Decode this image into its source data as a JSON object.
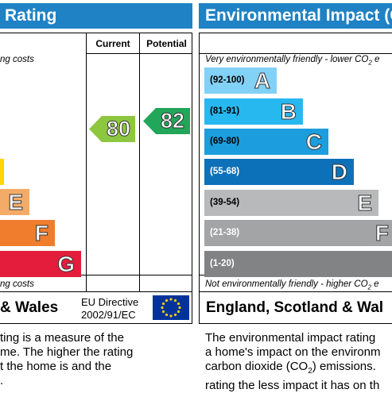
{
  "left": {
    "header_title": "Rating",
    "col_current": "Current",
    "col_potential": "Potential",
    "top_note": "ng costs",
    "bottom_note": "ng costs",
    "bands": [
      {
        "letter": "E",
        "color": "#f4ab67"
      },
      {
        "letter": "F",
        "color": "#ef7d2d"
      },
      {
        "letter": "G",
        "color": "#e31d3b"
      }
    ],
    "top_band_color": "#ffd600",
    "current_value": "80",
    "current_color": "#8dc63f",
    "potential_value": "82",
    "potential_color": "#22a65a",
    "footer_region": "& Wales",
    "footer_directive_line1": "EU Directive",
    "footer_directive_line2": "2002/91/EC",
    "desc_lines": [
      "ting is a measure of the",
      "me. The higher the rating",
      "t the home is and the",
      "."
    ]
  },
  "right": {
    "header_title": "Environmental Impact (C",
    "top_note": "Very environmentally friendly - lower CO",
    "top_note_tail": " e",
    "bottom_note": "Not environmentally friendly - higher CO",
    "bottom_note_tail": " e",
    "bands": [
      {
        "range": "(92-100)",
        "letter": "A",
        "color": "#82d1f7"
      },
      {
        "range": "(81-91)",
        "letter": "B",
        "color": "#28b8f0"
      },
      {
        "range": "(69-80)",
        "letter": "C",
        "color": "#1c9ede"
      },
      {
        "range": "(55-68)",
        "letter": "D",
        "color": "#0d71b9"
      },
      {
        "range": "(39-54)",
        "letter": "E",
        "color": "#b8b9bb"
      },
      {
        "range": "(21-38)",
        "letter": "F",
        "color": "#a3a4a6"
      },
      {
        "range": "(1-20)",
        "letter": "",
        "color": "#828385"
      }
    ],
    "footer_region": "England, Scotland & Wal",
    "desc_lines": [
      "The environmental impact rating",
      "a home's impact on the environm",
      "carbon dioxide (CO",
      "rating the less impact it has on th"
    ],
    "desc_line3_tail": ") emissions.",
    "subscript_2": "2"
  }
}
